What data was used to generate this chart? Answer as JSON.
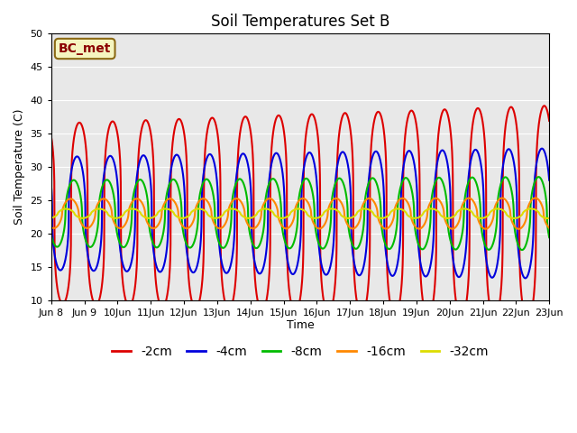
{
  "title": "Soil Temperatures Set B",
  "xlabel": "Time",
  "ylabel": "Soil Temperature (C)",
  "ylim": [
    10,
    50
  ],
  "annotation": "BC_met",
  "plot_bg": "#e8e8e8",
  "fig_bg": "#ffffff",
  "lines": [
    {
      "label": "-2cm",
      "color": "#dd0000",
      "lw": 1.5,
      "ls": "-"
    },
    {
      "label": "-4cm",
      "color": "#0000dd",
      "lw": 1.5,
      "ls": "-"
    },
    {
      "label": "-8cm",
      "color": "#00bb00",
      "lw": 1.5,
      "ls": "-"
    },
    {
      "label": "-16cm",
      "color": "#ff8800",
      "lw": 1.5,
      "ls": "-"
    },
    {
      "label": "-32cm",
      "color": "#dddd00",
      "lw": 1.5,
      "ls": "-"
    }
  ],
  "n_days": 15,
  "start_day": 8,
  "mean_temp": 23.0,
  "amplitudes": [
    13.5,
    8.5,
    5.0,
    2.2,
    0.7
  ],
  "phase_shifts": [
    0.0,
    0.07,
    0.17,
    0.27,
    0.4
  ],
  "sharpness": [
    3.5,
    2.5,
    2.0,
    1.8,
    1.5
  ],
  "amp_grow": [
    0.2,
    0.15,
    0.1,
    0.06,
    0.03
  ],
  "pts_per_day": 240,
  "figsize": [
    6.4,
    4.8
  ],
  "dpi": 100,
  "yticks": [
    10,
    15,
    20,
    25,
    30,
    35,
    40,
    45,
    50
  ],
  "grid_color": "#ffffff",
  "annotation_fc": "#f5f5c0",
  "annotation_ec": "#8b6914",
  "annotation_tc": "#8b0000"
}
